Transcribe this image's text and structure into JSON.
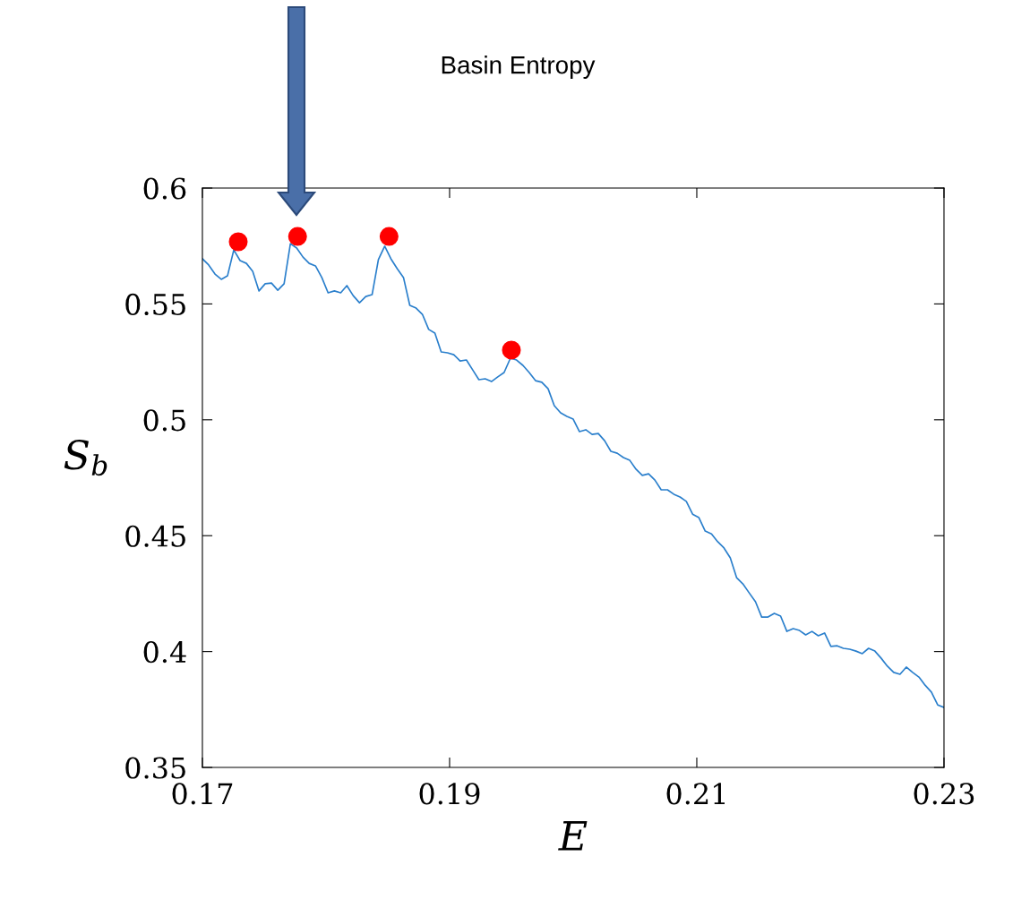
{
  "chart_data": {
    "type": "line",
    "annotations": [
      "Basin Entropy"
    ],
    "xlabel": "E",
    "ylabel": "S$_{b}$",
    "xlim": [
      0.17,
      0.23
    ],
    "xticks": [
      0.17,
      0.19,
      0.21,
      0.23
    ],
    "ylim": [
      0.35,
      0.6
    ],
    "yticks": [
      0.35,
      0.4,
      0.45,
      0.5,
      0.55,
      0.6
    ],
    "grid": false,
    "legend": false,
    "series": [
      {
        "color": "#2a7fcc",
        "marker": "none",
        "line_style": "solid",
        "x": [
          0.17,
          0.17051,
          0.17102,
          0.17153,
          0.17203,
          0.17254,
          0.17305,
          0.17356,
          0.17407,
          0.17458,
          0.17508,
          0.17559,
          0.1761,
          0.17661,
          0.17712,
          0.17763,
          0.17814,
          0.17864,
          0.17915,
          0.17966,
          0.18017,
          0.18068,
          0.18119,
          0.18169,
          0.1822,
          0.18271,
          0.18322,
          0.18373,
          0.18424,
          0.18475,
          0.18525,
          0.18576,
          0.18627,
          0.18678,
          0.18729,
          0.1878,
          0.18831,
          0.18881,
          0.18932,
          0.18983,
          0.19034,
          0.19085,
          0.19136,
          0.19186,
          0.19237,
          0.19288,
          0.19339,
          0.1939,
          0.19441,
          0.19492,
          0.19542,
          0.19593,
          0.19644,
          0.19695,
          0.19746,
          0.19797,
          0.19847,
          0.19898,
          0.19949,
          0.2,
          0.20051,
          0.20102,
          0.20153,
          0.20203,
          0.20254,
          0.20305,
          0.20356,
          0.20407,
          0.20458,
          0.20508,
          0.20559,
          0.2061,
          0.20661,
          0.20712,
          0.20763,
          0.20814,
          0.20864,
          0.20915,
          0.20966,
          0.21017,
          0.21068,
          0.21119,
          0.21169,
          0.2122,
          0.21271,
          0.21322,
          0.21373,
          0.21424,
          0.21475,
          0.21525,
          0.21576,
          0.21627,
          0.21678,
          0.21729,
          0.2178,
          0.21831,
          0.21881,
          0.21932,
          0.21983,
          0.22034,
          0.22085,
          0.22136,
          0.22186,
          0.22237,
          0.22288,
          0.22339,
          0.2239,
          0.22441,
          0.22492,
          0.22542,
          0.22593,
          0.22644,
          0.22695,
          0.22746,
          0.22797,
          0.22847,
          0.22898,
          0.22949,
          0.23
        ],
        "values": [
          0.5695,
          0.5668,
          0.5629,
          0.5606,
          0.5621,
          0.5733,
          0.5687,
          0.5675,
          0.5641,
          0.5556,
          0.5587,
          0.559,
          0.5559,
          0.5587,
          0.576,
          0.5741,
          0.5702,
          0.5675,
          0.5664,
          0.5614,
          0.5548,
          0.5556,
          0.5548,
          0.5579,
          0.5536,
          0.5505,
          0.5532,
          0.554,
          0.5691,
          0.5749,
          0.5695,
          0.5652,
          0.5614,
          0.5494,
          0.5482,
          0.5455,
          0.539,
          0.5374,
          0.5293,
          0.5289,
          0.5281,
          0.5254,
          0.5258,
          0.5216,
          0.5173,
          0.5177,
          0.5165,
          0.5185,
          0.5204,
          0.5266,
          0.5258,
          0.5235,
          0.5204,
          0.5169,
          0.5162,
          0.5134,
          0.5061,
          0.503,
          0.5015,
          0.5003,
          0.4949,
          0.4957,
          0.4937,
          0.4941,
          0.491,
          0.4864,
          0.4856,
          0.4837,
          0.4825,
          0.4787,
          0.476,
          0.4767,
          0.474,
          0.4698,
          0.4698,
          0.4679,
          0.4667,
          0.4648,
          0.4593,
          0.4578,
          0.452,
          0.4508,
          0.4474,
          0.4447,
          0.4404,
          0.4319,
          0.4292,
          0.4253,
          0.4215,
          0.4149,
          0.4149,
          0.4165,
          0.4153,
          0.4087,
          0.4099,
          0.4091,
          0.4072,
          0.4087,
          0.4068,
          0.408,
          0.4022,
          0.4025,
          0.4014,
          0.401,
          0.4002,
          0.3991,
          0.4014,
          0.4002,
          0.3971,
          0.3937,
          0.391,
          0.3902,
          0.3933,
          0.391,
          0.389,
          0.3855,
          0.3825,
          0.377,
          0.3759
        ]
      },
      {
        "type": "scatter",
        "color": "#ff0000",
        "marker": "circle",
        "x": [
          0.1729,
          0.1777,
          0.1851,
          0.195
        ],
        "values": [
          0.5768,
          0.5791,
          0.5791,
          0.5301
        ]
      }
    ]
  }
}
